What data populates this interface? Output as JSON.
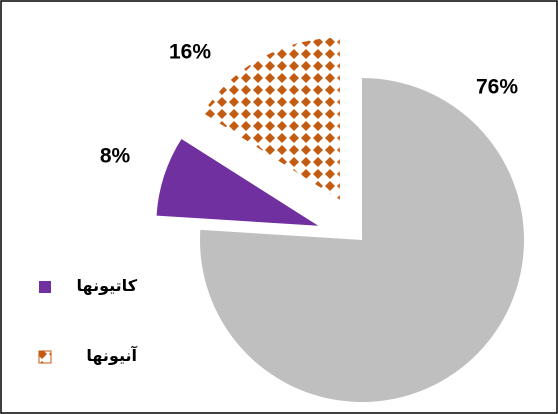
{
  "chart_data": {
    "type": "pie",
    "categories": [
      null,
      "کاتیونها",
      "آنیونها"
    ],
    "values": [
      76,
      8,
      16
    ],
    "value_labels": [
      "76%",
      "8%",
      "16%"
    ],
    "colors": [
      "#bfbfbf",
      "#7030a0",
      "#c55a11"
    ],
    "patterns": [
      null,
      null,
      "diamonds"
    ]
  }
}
